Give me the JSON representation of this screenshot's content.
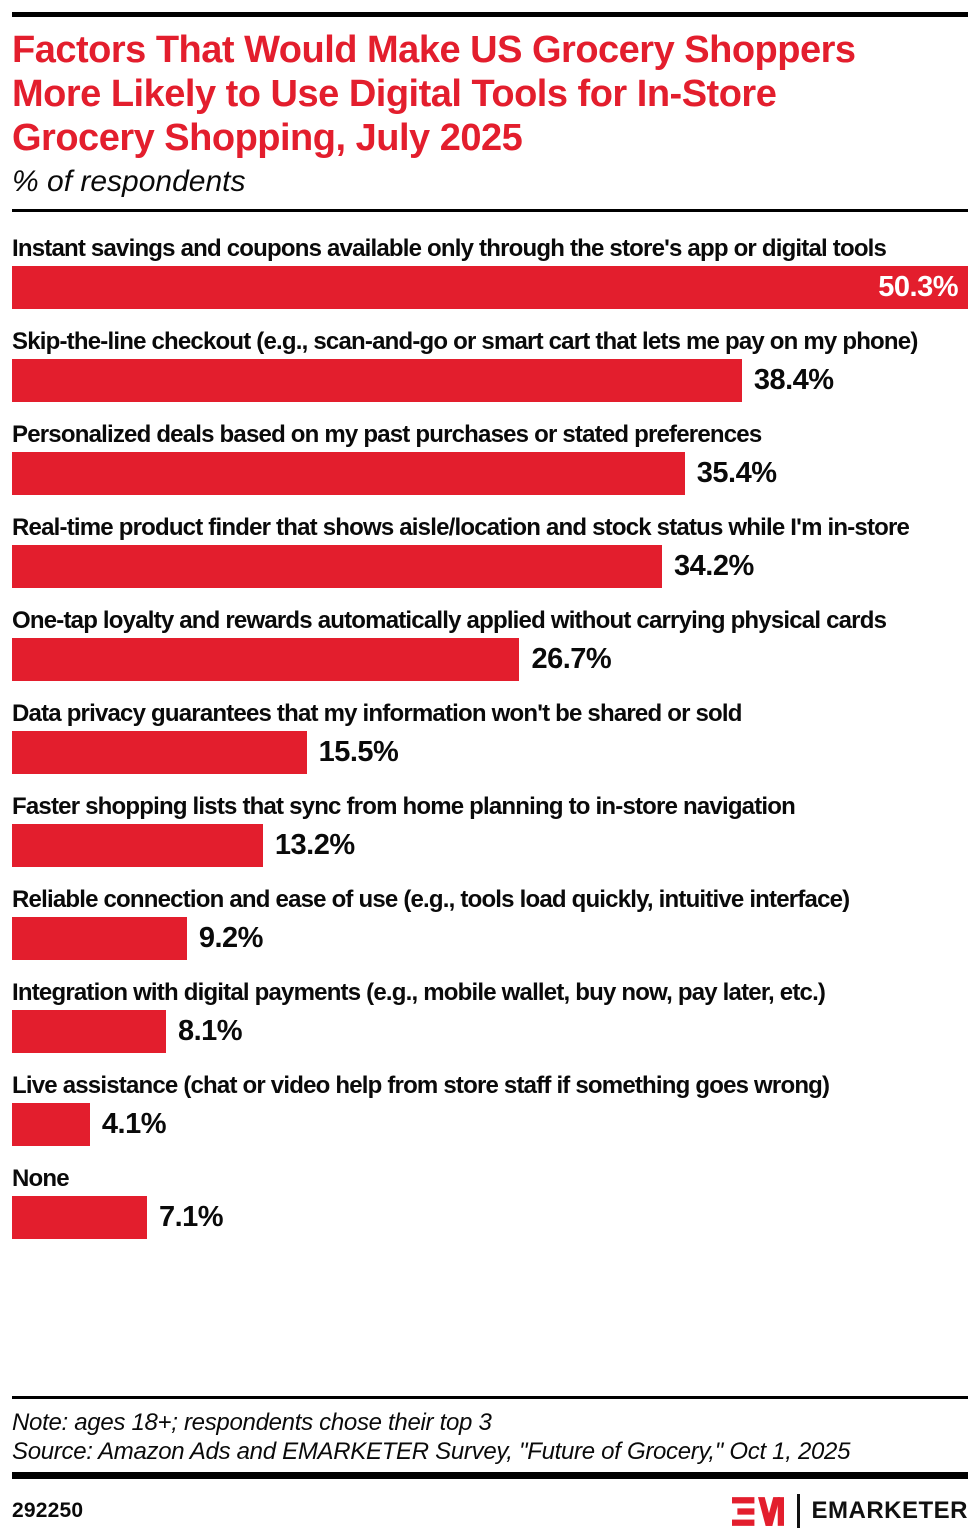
{
  "header": {
    "title_lines": [
      "Factors That Would Make US Grocery Shoppers",
      "More Likely to Use Digital Tools for In-Store",
      "Grocery Shopping, July 2025"
    ],
    "subtitle": "% of respondents"
  },
  "chart_data": {
    "type": "bar",
    "orientation": "horizontal",
    "title": "Factors That Would Make US Grocery Shoppers More Likely to Use Digital Tools for In-Store Grocery Shopping, July 2025",
    "unit": "% of respondents",
    "categories": [
      "Instant savings and coupons available only through the store's app or digital tools",
      "Skip-the-line checkout (e.g., scan-and-go or smart cart that lets me pay on my phone)",
      "Personalized deals based on my past purchases or stated preferences",
      "Real-time product finder that shows aisle/location and stock status while I'm in-store",
      "One-tap loyalty and rewards automatically applied without carrying physical cards",
      "Data privacy guarantees that my information won't be shared or sold",
      "Faster shopping lists that sync from home planning to in-store navigation",
      "Reliable connection and ease of use (e.g., tools load quickly, intuitive interface)",
      "Integration with digital payments (e.g., mobile wallet, buy now, pay later, etc.)",
      "Live assistance (chat or video help from store staff if something goes wrong)",
      "None"
    ],
    "values": [
      50.3,
      38.4,
      35.4,
      34.2,
      26.7,
      15.5,
      13.2,
      9.2,
      8.1,
      4.1,
      7.1
    ],
    "value_suffix": "%",
    "xlim": [
      0,
      50.3
    ],
    "grid": false,
    "legend": false,
    "bar_color": "#e31e2d",
    "value_label_rule": "max value labeled inside bar in white; all others outside in black"
  },
  "footer": {
    "note": "Note: ages 18+; respondents chose their top 3",
    "source": "Source: Amazon Ads and EMARKETER Survey, \"Future of Grocery,\" Oct 1, 2025",
    "chart_id": "292250",
    "brand": "EMARKETER"
  },
  "colors": {
    "accent_red": "#e31e2d",
    "text": "#0a0a0a",
    "rule": "#000000"
  }
}
